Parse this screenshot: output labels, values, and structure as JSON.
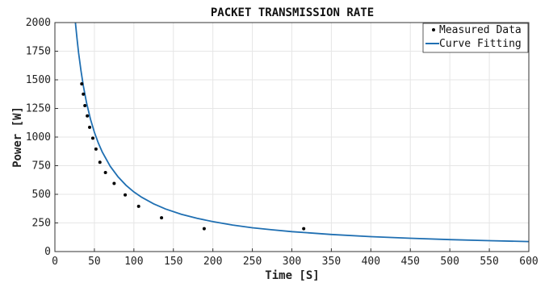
{
  "chart_data": {
    "type": "scatter",
    "title": "PACKET TRANSMISSION RATE",
    "xlabel": "Time [S]",
    "ylabel": "Power [W]",
    "xlim": [
      0,
      600
    ],
    "ylim": [
      0,
      2000
    ],
    "xticks": [
      0,
      50,
      100,
      150,
      200,
      250,
      300,
      350,
      400,
      450,
      500,
      550,
      600
    ],
    "yticks": [
      0,
      250,
      500,
      750,
      1000,
      1250,
      1500,
      1750,
      2000
    ],
    "grid": true,
    "legend_position": "top-right",
    "legend": [
      "Measured Data",
      "Curve Fitting"
    ],
    "colors": {
      "measured": "#000000",
      "fit": "#1f6fb2"
    },
    "series": [
      {
        "name": "Measured Data",
        "mode": "markers",
        "x": [
          34,
          36,
          38,
          41,
          44,
          48,
          52,
          57,
          64,
          75,
          89,
          106,
          135,
          189,
          315
        ],
        "y": [
          1465,
          1375,
          1275,
          1185,
          1085,
          990,
          895,
          780,
          690,
          595,
          495,
          395,
          295,
          200,
          200
        ]
      },
      {
        "name": "Curve Fitting",
        "mode": "line",
        "x": [
          26,
          28,
          30,
          33,
          36,
          40,
          45,
          50,
          55,
          60,
          70,
          80,
          90,
          100,
          110,
          125,
          140,
          160,
          180,
          200,
          225,
          250,
          275,
          300,
          350,
          400,
          450,
          500,
          550,
          600
        ],
        "y": [
          2000,
          1860,
          1738,
          1580,
          1448,
          1303,
          1158,
          1042,
          948,
          869,
          745,
          652,
          579,
          521,
          474,
          417,
          372,
          326,
          290,
          261,
          232,
          208,
          190,
          174,
          149,
          130,
          116,
          104,
          95,
          87
        ]
      }
    ]
  }
}
